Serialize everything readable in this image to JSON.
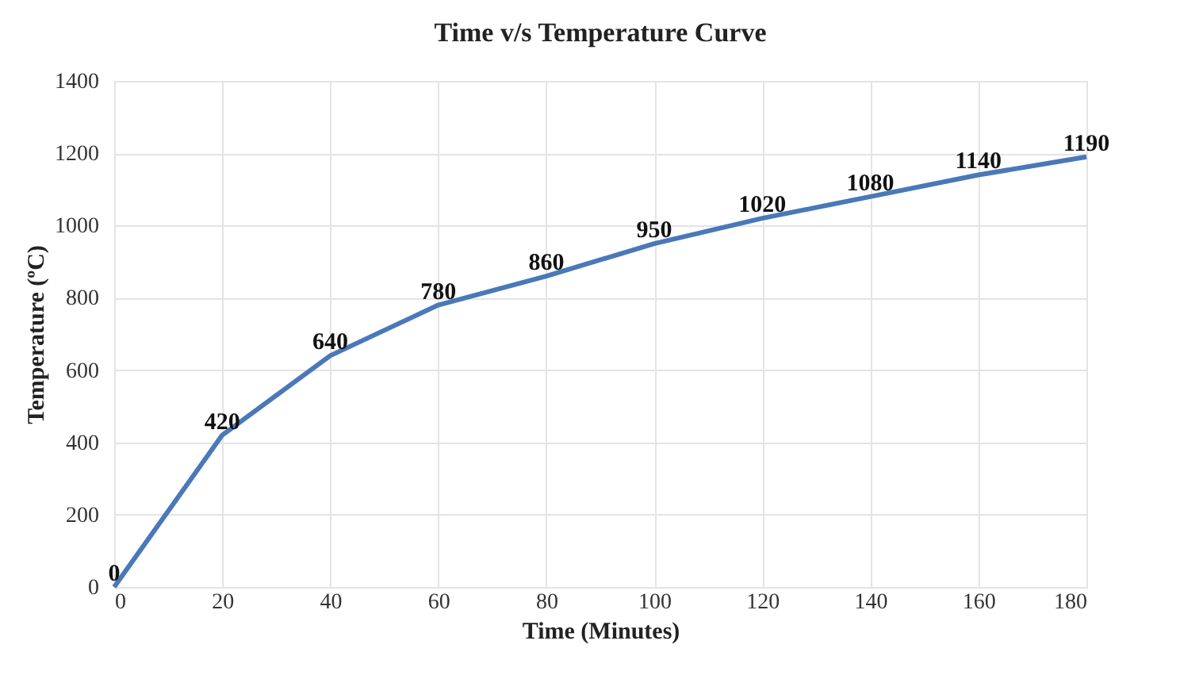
{
  "chart_data": {
    "type": "line",
    "title": "Time v/s Temperature Curve",
    "xlabel": "Time (Minutes)",
    "ylabel": "Temperature (ºC)",
    "x": [
      0,
      20,
      40,
      60,
      80,
      100,
      120,
      140,
      160,
      180
    ],
    "series": [
      {
        "color": "#4a78b8",
        "values": [
          0,
          420,
          640,
          780,
          860,
          950,
          1020,
          1080,
          1140,
          1190
        ]
      }
    ],
    "xlim": [
      0,
      180
    ],
    "xticks": [
      0,
      20,
      40,
      60,
      80,
      100,
      120,
      140,
      160,
      180
    ],
    "ylim": [
      0,
      1400
    ],
    "yticks": [
      0,
      200,
      400,
      600,
      800,
      1000,
      1200,
      1400
    ],
    "grid": true,
    "data_labels": true,
    "marker": "none",
    "line_style": "solid",
    "legend": false
  }
}
